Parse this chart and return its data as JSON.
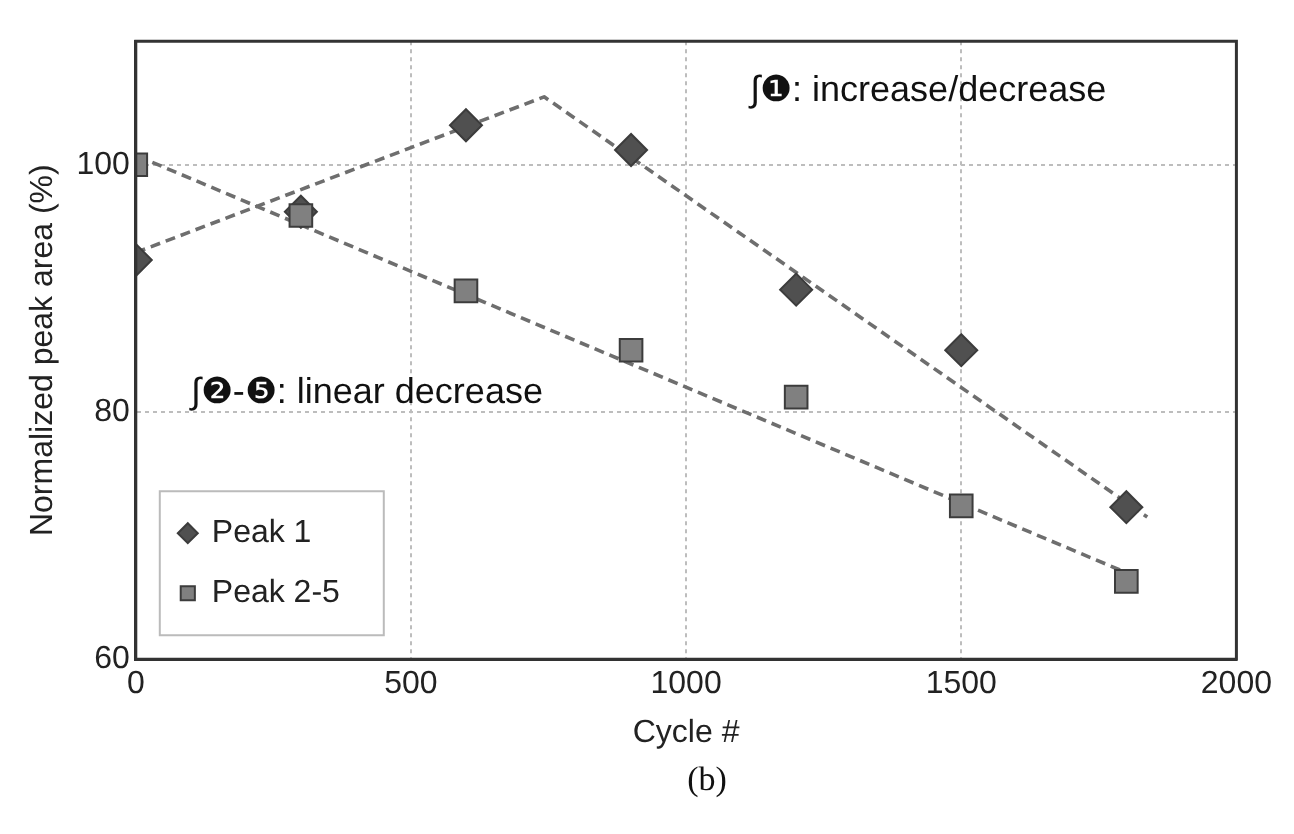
{
  "chart_data": {
    "type": "scatter",
    "xlabel": "Cycle #",
    "ylabel": "Normalized peak area (%)",
    "xlim": [
      0,
      2000
    ],
    "xticks": [
      0,
      500,
      1000,
      1500,
      2000
    ],
    "ylim": [
      60,
      110
    ],
    "yticks": [
      60,
      80,
      100
    ],
    "grid": true,
    "legend": "bottom left",
    "line_style": "dashed",
    "series": [
      {
        "name": "Peak 1",
        "marker": "diamond",
        "color": "#505050",
        "x": [
          0,
          300,
          600,
          900,
          1200,
          1500,
          1800
        ],
        "values": [
          92.3,
          96.2,
          103.2,
          101.2,
          89.9,
          85.0,
          72.3
        ]
      },
      {
        "name": "Peak 2-5",
        "marker": "square",
        "color": "#808080",
        "x": [
          0,
          300,
          600,
          900,
          1200,
          1500,
          1800
        ],
        "values": [
          100,
          95.9,
          89.8,
          85.0,
          81.2,
          72.4,
          66.3
        ]
      },
      {
        "type": "line",
        "marker": "none",
        "color": "#6e6e6e",
        "x": [
          0,
          742,
          1838
        ],
        "values": [
          92.9,
          105.5,
          71.5
        ]
      },
      {
        "type": "line",
        "marker": "none",
        "color": "#6e6e6e",
        "x": [
          30,
          1800
        ],
        "values": [
          100.2,
          67.0
        ]
      }
    ],
    "annotations": [
      "∫❶: increase/decrease",
      "∫❷-❺: linear decrease",
      "(b)"
    ]
  }
}
